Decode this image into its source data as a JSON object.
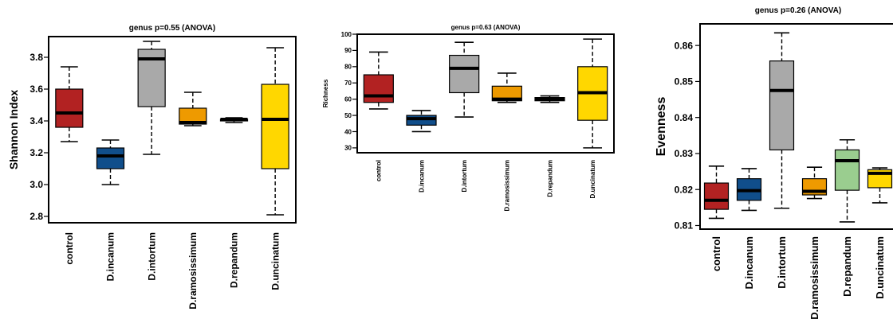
{
  "chart_data": [
    {
      "type": "box",
      "title": "genus p=0.55 (ANOVA)",
      "ylabel": "Shannon Index",
      "categories": [
        "control",
        "D.incanum",
        "D.intortum",
        "D.ramosissimum",
        "D.repandum",
        "D.uncinatum"
      ],
      "colors": [
        "#b22222",
        "#104e8b",
        "#a9a9a9",
        "#ee9a00",
        "#a9a9a9",
        "#ffd700"
      ],
      "yticks": [
        2.8,
        3.0,
        3.2,
        3.4,
        3.6,
        3.8
      ],
      "ylim": [
        2.76,
        3.93
      ],
      "boxes": [
        {
          "min": 3.27,
          "q1": 3.36,
          "median": 3.45,
          "q3": 3.6,
          "max": 3.74
        },
        {
          "min": 3.0,
          "q1": 3.1,
          "median": 3.18,
          "q3": 3.23,
          "max": 3.28
        },
        {
          "min": 3.19,
          "q1": 3.49,
          "median": 3.79,
          "q3": 3.85,
          "max": 3.9
        },
        {
          "min": 3.37,
          "q1": 3.38,
          "median": 3.39,
          "q3": 3.48,
          "max": 3.58
        },
        {
          "min": 3.39,
          "q1": 3.4,
          "median": 3.41,
          "q3": 3.41,
          "max": 3.42
        },
        {
          "min": 2.81,
          "q1": 3.1,
          "median": 3.41,
          "q3": 3.63,
          "max": 3.86
        }
      ]
    },
    {
      "type": "box",
      "title": "genus p=0.63 (ANOVA)",
      "ylabel": "Richness",
      "categories": [
        "control",
        "D.incanum",
        "D.intortum",
        "D.ramosissimum",
        "D.repandum",
        "D.uncinatum"
      ],
      "colors": [
        "#b22222",
        "#104e8b",
        "#a9a9a9",
        "#ee9a00",
        "#9acd8f",
        "#ffd700"
      ],
      "yticks": [
        30,
        40,
        50,
        60,
        70,
        80,
        90,
        100
      ],
      "ylim": [
        27,
        100
      ],
      "boxes": [
        {
          "min": 54,
          "q1": 58,
          "median": 62,
          "q3": 75,
          "max": 89
        },
        {
          "min": 40,
          "q1": 44,
          "median": 48,
          "q3": 50,
          "max": 53
        },
        {
          "min": 49,
          "q1": 64,
          "median": 79,
          "q3": 87,
          "max": 95
        },
        {
          "min": 58,
          "q1": 59,
          "median": 60,
          "q3": 68,
          "max": 76
        },
        {
          "min": 58,
          "q1": 59,
          "median": 60,
          "q3": 61,
          "max": 62
        },
        {
          "min": 30,
          "q1": 47,
          "median": 64,
          "q3": 80,
          "max": 97
        }
      ]
    },
    {
      "type": "box",
      "title": "genus p=0.26 (ANOVA)",
      "ylabel": "Evenness",
      "categories": [
        "control",
        "D.incanum",
        "D.intortum",
        "D.ramosissimum",
        "D.repandum",
        "D.uncinatum"
      ],
      "colors": [
        "#b22222",
        "#104e8b",
        "#a9a9a9",
        "#ee9a00",
        "#9acd8f",
        "#ffd700"
      ],
      "yticks": [
        0.81,
        0.82,
        0.83,
        0.84,
        0.85,
        0.86
      ],
      "ylim": [
        0.809,
        0.866
      ],
      "boxes": [
        {
          "min": 0.812,
          "q1": 0.8145,
          "median": 0.817,
          "q3": 0.8218,
          "max": 0.8265
        },
        {
          "min": 0.8142,
          "q1": 0.817,
          "median": 0.8197,
          "q3": 0.823,
          "max": 0.8258
        },
        {
          "min": 0.8148,
          "q1": 0.831,
          "median": 0.8475,
          "q3": 0.8557,
          "max": 0.8635
        },
        {
          "min": 0.8175,
          "q1": 0.8185,
          "median": 0.8195,
          "q3": 0.823,
          "max": 0.8262
        },
        {
          "min": 0.811,
          "q1": 0.8198,
          "median": 0.828,
          "q3": 0.831,
          "max": 0.8338
        },
        {
          "min": 0.8163,
          "q1": 0.8205,
          "median": 0.8245,
          "q3": 0.8255,
          "max": 0.826
        }
      ]
    }
  ]
}
